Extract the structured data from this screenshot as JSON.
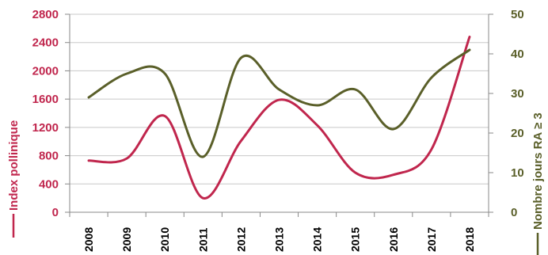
{
  "chart_data": {
    "type": "line",
    "x": [
      "2008",
      "2009",
      "2010",
      "2011",
      "2012",
      "2013",
      "2014",
      "2015",
      "2016",
      "2017",
      "2018"
    ],
    "series": [
      {
        "name": "Index pollinique",
        "axis": "left",
        "color": "#c0264d",
        "values": [
          730,
          760,
          1360,
          200,
          1010,
          1590,
          1230,
          560,
          530,
          890,
          2480
        ]
      },
      {
        "name": "Nombre jours  RA ≥ 3",
        "axis": "right",
        "color": "#5a5f29",
        "values": [
          29,
          35,
          35,
          14,
          39,
          31,
          27,
          31,
          21,
          34,
          41
        ]
      }
    ],
    "y_left": {
      "label": "Index pollinique",
      "range": [
        0,
        2800
      ],
      "ticks": [
        "0",
        "400",
        "800",
        "1200",
        "1600",
        "2000",
        "2400",
        "2800"
      ]
    },
    "y_right": {
      "label": "Nombre jours  RA ≥ 3",
      "range": [
        0,
        50
      ],
      "ticks": [
        "0",
        "10",
        "20",
        "30",
        "40",
        "50"
      ]
    },
    "grid": true
  }
}
